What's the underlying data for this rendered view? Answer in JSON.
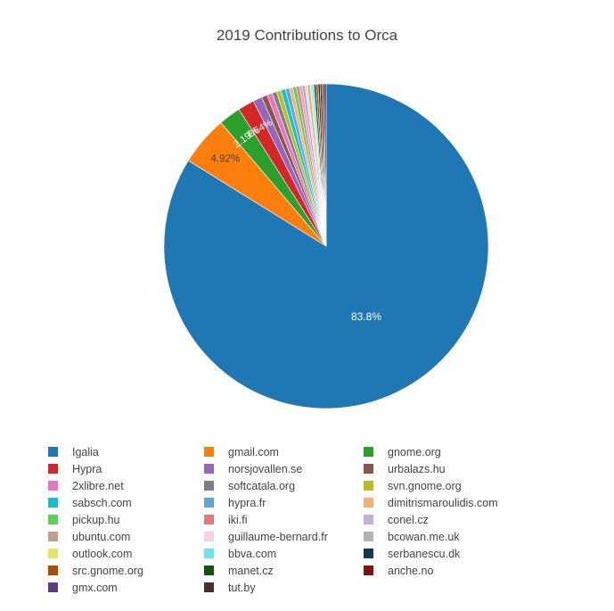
{
  "chart_data": {
    "type": "pie",
    "title": "2019 Contributions to Orca",
    "direction": "clockwise",
    "start_angle_deg": 0,
    "legend_placement": "bottom",
    "slices": [
      {
        "label": "Igalia",
        "value": 83.8,
        "color": "#1f77b4",
        "text": "83.8%"
      },
      {
        "label": "gmail.com",
        "value": 4.92,
        "color": "#ff7f0e",
        "text": "4.92%"
      },
      {
        "label": "gnome.org",
        "value": 2.19,
        "color": "#2ca02c",
        "text": "2.19%"
      },
      {
        "label": "Hypra",
        "value": 1.64,
        "color": "#d62728",
        "text": "1.64%"
      },
      {
        "label": "norsjovallen.se",
        "value": 0.9,
        "color": "#9467bd",
        "text": ""
      },
      {
        "label": "urbalazs.hu",
        "value": 0.55,
        "color": "#8c564b",
        "text": ""
      },
      {
        "label": "2xlibre.net",
        "value": 0.55,
        "color": "#e377c2",
        "text": ""
      },
      {
        "label": "softcatala.org",
        "value": 0.45,
        "color": "#7f7f7f",
        "text": ""
      },
      {
        "label": "svn.gnome.org",
        "value": 0.45,
        "color": "#bcbd22",
        "text": ""
      },
      {
        "label": "sabsch.com",
        "value": 0.45,
        "color": "#17becf",
        "text": ""
      },
      {
        "label": "hypra.fr",
        "value": 0.4,
        "color": "#5da5da",
        "text": ""
      },
      {
        "label": "dimitrismaroulidis.com",
        "value": 0.35,
        "color": "#f4b07a",
        "text": ""
      },
      {
        "label": "pickup.hu",
        "value": 0.35,
        "color": "#5cd05c",
        "text": ""
      },
      {
        "label": "iki.fi",
        "value": 0.3,
        "color": "#e8787a",
        "text": ""
      },
      {
        "label": "conel.cz",
        "value": 0.3,
        "color": "#c5b0d5",
        "text": ""
      },
      {
        "label": "ubuntu.com",
        "value": 0.25,
        "color": "#c49c94",
        "text": ""
      },
      {
        "label": "guillaume-bernard.fr",
        "value": 0.25,
        "color": "#f7cfe6",
        "text": ""
      },
      {
        "label": "bcowan.me.uk",
        "value": 0.25,
        "color": "#b3b3b3",
        "text": ""
      },
      {
        "label": "outlook.com",
        "value": 0.2,
        "color": "#e4e46a",
        "text": ""
      },
      {
        "label": "bbva.com",
        "value": 0.2,
        "color": "#6ee2ee",
        "text": ""
      },
      {
        "label": "serbanescu.dk",
        "value": 0.2,
        "color": "#103a5c",
        "text": ""
      },
      {
        "label": "src.gnome.org",
        "value": 0.2,
        "color": "#a94f05",
        "text": ""
      },
      {
        "label": "manet.cz",
        "value": 0.2,
        "color": "#145214",
        "text": ""
      },
      {
        "label": "anche.no",
        "value": 0.2,
        "color": "#7d1313",
        "text": ""
      },
      {
        "label": "gmx.com",
        "value": 0.2,
        "color": "#5b3c83",
        "text": ""
      },
      {
        "label": "tut.by",
        "value": 0.2,
        "color": "#4b302a",
        "text": ""
      }
    ]
  }
}
